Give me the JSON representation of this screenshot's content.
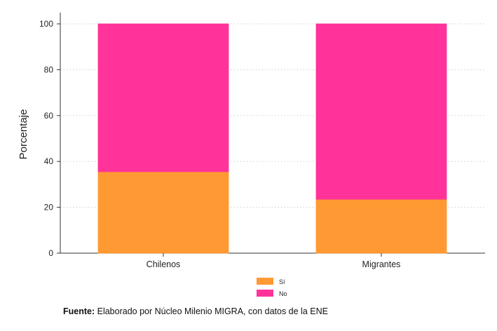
{
  "chart_data": {
    "type": "bar",
    "stacked": true,
    "categories": [
      "Chilenos",
      "Migrantes"
    ],
    "series": [
      {
        "name": "Sí",
        "values": [
          35.5,
          23.5
        ],
        "color": "#FF9933"
      },
      {
        "name": "No",
        "values": [
          64.5,
          76.5
        ],
        "color": "#FF3399"
      }
    ],
    "ylabel": "Porcentaje",
    "ylim": [
      0,
      100
    ],
    "yticks": [
      0,
      20,
      40,
      60,
      80,
      100
    ],
    "grid": true,
    "legend_position": "bottom-center"
  },
  "source": {
    "label": "Fuente:",
    "text": " Elaborado por Núcleo Milenio MIGRA, con datos de la ENE"
  }
}
